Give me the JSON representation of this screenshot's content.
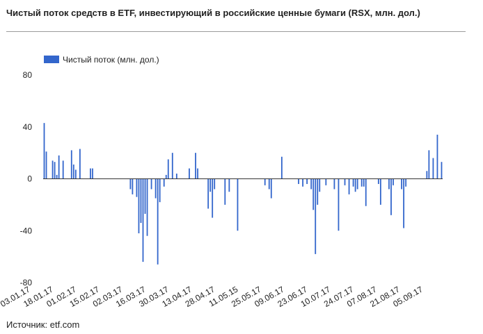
{
  "title": "Чистый поток средств в ETF, инвестирующий в российские ценные бумаги (RSX, млн. дол.)",
  "source": "Источник: etf.com",
  "colors": {
    "bar": "#3366cc",
    "grid": "#cccccc",
    "zero": "#333333"
  },
  "chart_data": {
    "type": "bar",
    "title": "Чистый поток средств в ETF, инвестирующий в российские ценные бумаги (RSX, млн. дол.)",
    "xlabel": "",
    "ylabel": "",
    "ylim": [
      -80,
      80
    ],
    "yticks": [
      80,
      40,
      0,
      -40,
      -80
    ],
    "grid": false,
    "legend_position": "top-left",
    "x_tick_labels": [
      "03.01.17",
      "18.01.17",
      "01.02.17",
      "15.02.17",
      "02.03.17",
      "16.03.17",
      "30.03.17",
      "13.04.17",
      "28.04.17",
      "11.05.15",
      "25.05.17",
      "09.06.17",
      "23.06.17",
      "10.07.17",
      "24.07.17",
      "07.08.17",
      "21.08.17",
      "05.09.17"
    ],
    "series": [
      {
        "name": "Чистый поток (млн. дол.)",
        "values": [
          43,
          21,
          0,
          0,
          14,
          13,
          3,
          18,
          0,
          14,
          0,
          0,
          0,
          22,
          11,
          7,
          0,
          23,
          0,
          0,
          0,
          0,
          8,
          8,
          0,
          0,
          0,
          0,
          0,
          0,
          0,
          0,
          0,
          0,
          0,
          0,
          0,
          0,
          0,
          0,
          0,
          -8,
          -12,
          0,
          -14,
          -42,
          -34,
          -64,
          -27,
          -44,
          0,
          -8,
          0,
          -15,
          -66,
          -18,
          0,
          -6,
          3,
          15,
          0,
          20,
          0,
          4,
          0,
          0,
          0,
          0,
          0,
          8,
          0,
          0,
          20,
          8,
          0,
          0,
          0,
          0,
          -23,
          -10,
          -30,
          -8,
          0,
          0,
          0,
          0,
          -20,
          0,
          -10,
          0,
          0,
          0,
          -40,
          0,
          0,
          0,
          0,
          0,
          0,
          0,
          0,
          0,
          0,
          0,
          0,
          -5,
          0,
          -8,
          -15,
          0,
          0,
          0,
          0,
          17,
          0,
          0,
          0,
          0,
          0,
          0,
          0,
          -4,
          0,
          -6,
          0,
          -4,
          0,
          -8,
          -24,
          -58,
          -20,
          -10,
          0,
          0,
          -5,
          0,
          0,
          0,
          -8,
          0,
          -40,
          0,
          0,
          -5,
          0,
          -12,
          0,
          -6,
          -10,
          -8,
          0,
          -6,
          -6,
          -21,
          0,
          0,
          0,
          0,
          0,
          -4,
          -20,
          0,
          0,
          0,
          -8,
          -28,
          -5,
          0,
          0,
          0,
          -8,
          -38,
          -6,
          0,
          0,
          0,
          0,
          0,
          0,
          0,
          0,
          0,
          6,
          22,
          0,
          16,
          0,
          34,
          0,
          13
        ]
      }
    ]
  }
}
